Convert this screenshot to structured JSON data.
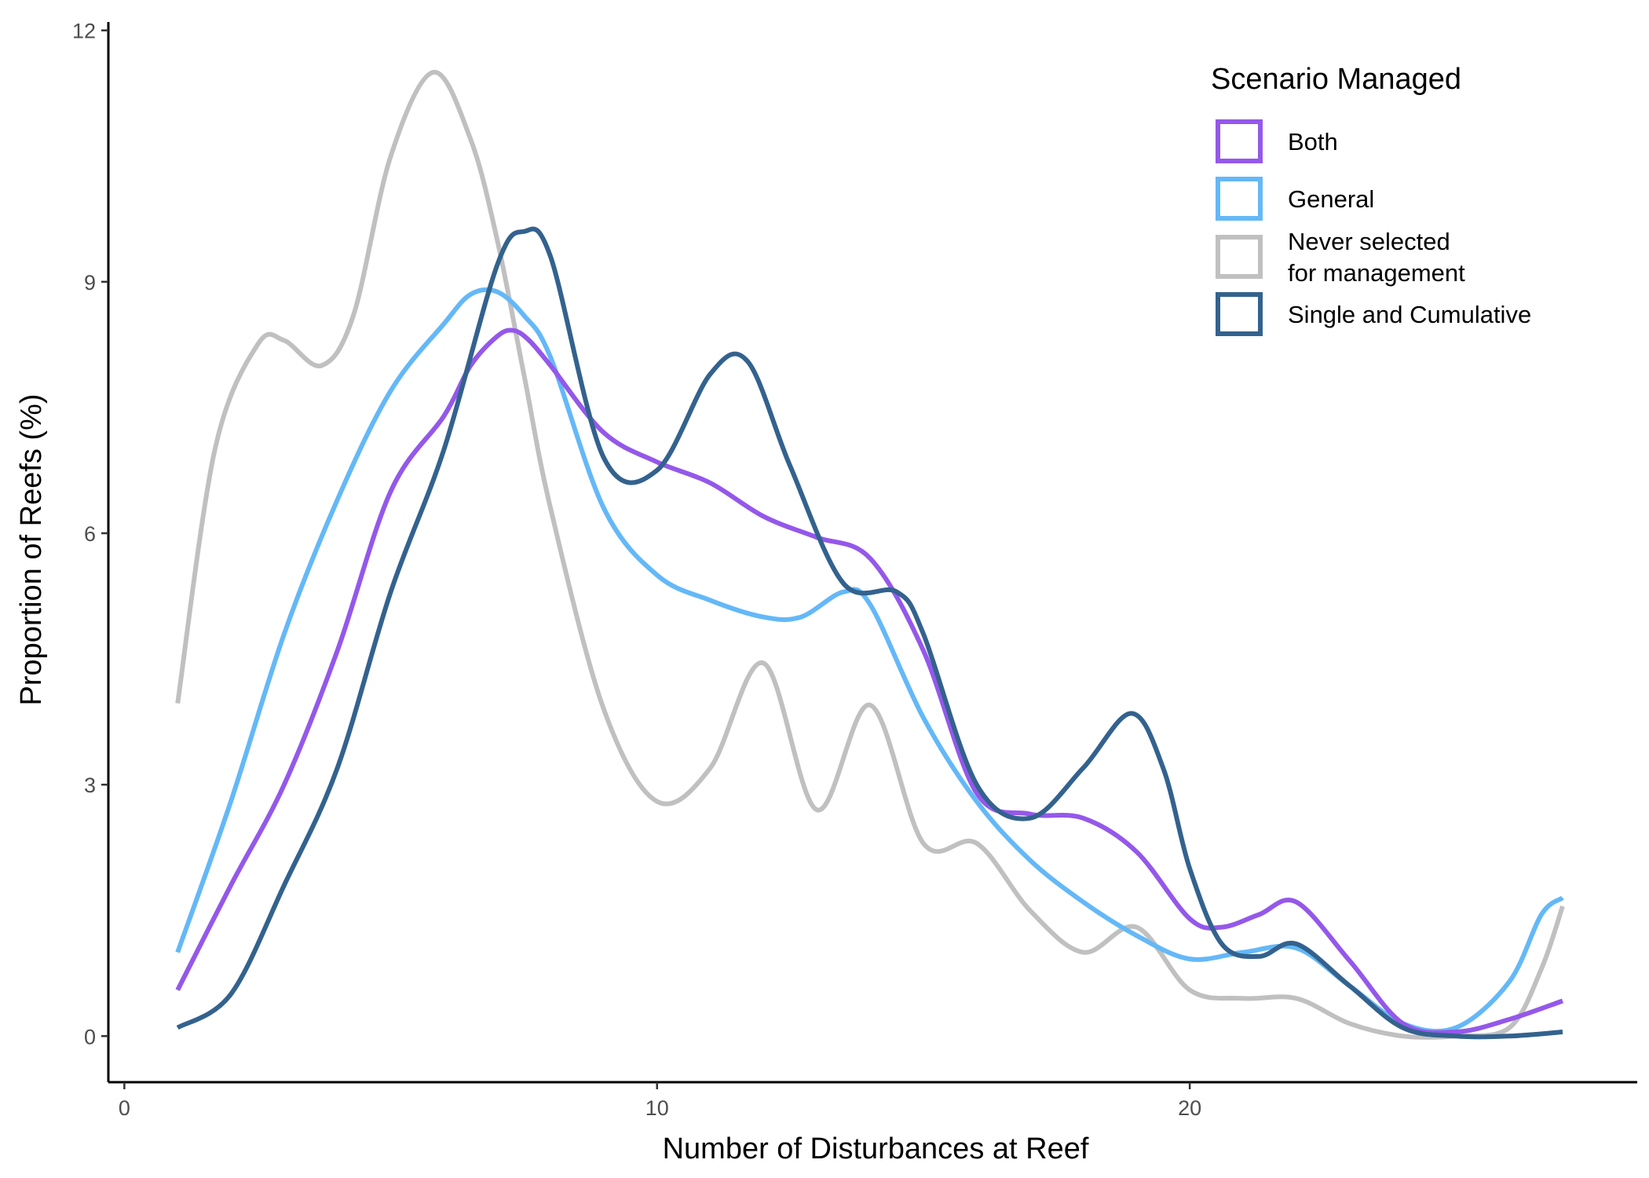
{
  "chart_data": {
    "type": "line",
    "xlabel": "Number of Disturbances at Reef",
    "ylabel": "Proportion of Reefs (%)",
    "xlim": [
      -0.3,
      28.4
    ],
    "ylim": [
      -0.55,
      12.1
    ],
    "xticks": [
      0,
      10,
      20
    ],
    "yticks": [
      0,
      3,
      6,
      9,
      12
    ],
    "grid": false,
    "legend": {
      "title": "Scenario Managed",
      "placement": "top-right"
    },
    "series": [
      {
        "name": "Both",
        "color": "#9458ea",
        "x": [
          1,
          2,
          3,
          4,
          5,
          6,
          6.5,
          7,
          7.3,
          7.6,
          8,
          9,
          10,
          11,
          12,
          13,
          14,
          15,
          16,
          17,
          18,
          19,
          20,
          20.6,
          21.3,
          22,
          23,
          24,
          25,
          26,
          27
        ],
        "y": [
          0.55,
          1.8,
          3.0,
          4.6,
          6.5,
          7.4,
          8.0,
          8.35,
          8.42,
          8.3,
          8.0,
          7.2,
          6.85,
          6.6,
          6.2,
          5.95,
          5.7,
          4.6,
          2.9,
          2.65,
          2.6,
          2.2,
          1.4,
          1.3,
          1.45,
          1.6,
          0.9,
          0.15,
          0.05,
          0.2,
          0.42
        ]
      },
      {
        "name": "General",
        "color": "#64b8f7",
        "x": [
          1,
          2,
          3,
          4,
          5,
          6,
          6.5,
          7,
          7.5,
          8,
          9,
          10,
          11,
          12,
          12.7,
          13.5,
          14,
          15,
          16,
          17,
          18,
          19,
          20,
          21,
          22,
          23,
          24,
          25,
          26,
          26.6,
          27
        ],
        "y": [
          1.0,
          2.8,
          4.8,
          6.4,
          7.7,
          8.5,
          8.85,
          8.88,
          8.6,
          8.1,
          6.3,
          5.5,
          5.2,
          5.0,
          5.0,
          5.3,
          5.15,
          3.8,
          2.8,
          2.1,
          1.6,
          1.2,
          0.92,
          1.0,
          1.05,
          0.6,
          0.15,
          0.1,
          0.65,
          1.45,
          1.65
        ]
      },
      {
        "name": "Never selected\nfor management",
        "color": "#c0c0c0",
        "x": [
          1,
          1.7,
          2.5,
          3,
          3.7,
          4.3,
          5,
          5.8,
          6.5,
          7,
          7.5,
          8,
          9,
          10,
          11,
          12,
          13,
          14,
          15,
          16,
          17,
          18,
          19,
          20,
          21,
          22,
          23,
          24,
          25,
          26,
          26.6,
          27
        ],
        "y": [
          3.97,
          7.0,
          8.25,
          8.3,
          8.0,
          8.6,
          10.5,
          11.5,
          10.7,
          9.5,
          7.9,
          6.3,
          3.9,
          2.8,
          3.2,
          4.45,
          2.7,
          3.95,
          2.3,
          2.3,
          1.5,
          1.0,
          1.3,
          0.55,
          0.45,
          0.45,
          0.15,
          0.0,
          0.0,
          0.1,
          0.8,
          1.55
        ]
      },
      {
        "name": "Single and Cumulative",
        "color": "#33628e",
        "x": [
          1,
          2,
          3,
          4,
          5,
          6,
          7,
          7.5,
          8,
          9,
          10,
          11,
          11.7,
          12.5,
          13.5,
          14.5,
          15,
          16,
          17,
          18,
          18.9,
          19.5,
          20,
          20.6,
          21.3,
          22,
          23,
          24,
          25,
          26,
          27
        ],
        "y": [
          0.1,
          0.5,
          1.8,
          3.2,
          5.3,
          7.0,
          9.2,
          9.6,
          9.3,
          6.9,
          6.75,
          7.9,
          8.05,
          6.8,
          5.4,
          5.3,
          4.8,
          3.0,
          2.6,
          3.2,
          3.85,
          3.2,
          2.0,
          1.1,
          0.95,
          1.1,
          0.6,
          0.1,
          0.0,
          0.0,
          0.05
        ]
      }
    ]
  }
}
